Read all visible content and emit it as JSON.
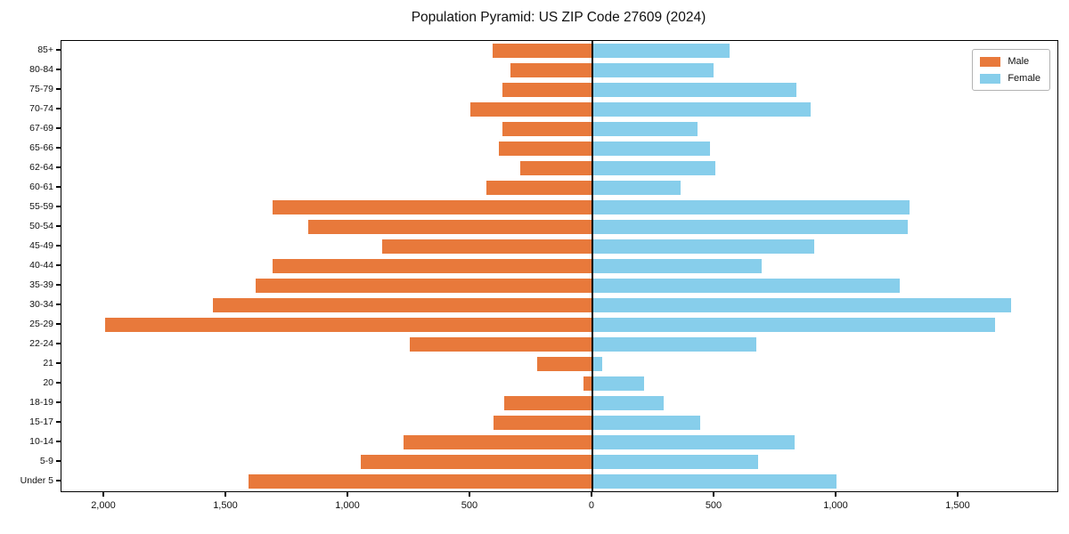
{
  "figure": {
    "title": "Population Pyramid: US ZIP Code 27609 (2024)"
  },
  "legend": {
    "male_label": "Male",
    "female_label": "Female"
  },
  "colors": {
    "male": "#e8793b",
    "female": "#87ceeb",
    "axis": "#000000",
    "legend_border": "#b3b3b3"
  },
  "chart_data": {
    "type": "bar",
    "subtype": "population-pyramid",
    "title": "Population Pyramid: US ZIP Code 27609 (2024)",
    "xlabel": "",
    "ylabel": "",
    "grid": false,
    "zero_line": true,
    "legend_position": "upper-right",
    "categories": [
      "85+",
      "80-84",
      "75-79",
      "70-74",
      "67-69",
      "65-66",
      "62-64",
      "60-61",
      "55-59",
      "50-54",
      "45-49",
      "40-44",
      "35-39",
      "30-34",
      "25-29",
      "22-24",
      "21",
      "20",
      "18-19",
      "15-17",
      "10-14",
      "5-9",
      "Under 5"
    ],
    "series": [
      {
        "name": "Male",
        "side": "left",
        "color": "#e8793b",
        "values": [
          410,
          335,
          370,
          500,
          370,
          385,
          295,
          435,
          1310,
          1165,
          860,
          1310,
          1380,
          1555,
          1995,
          750,
          225,
          35,
          360,
          405,
          775,
          950,
          1410
        ]
      },
      {
        "name": "Female",
        "side": "right",
        "color": "#87ceeb",
        "values": [
          560,
          495,
          835,
          895,
          430,
          480,
          505,
          360,
          1300,
          1290,
          910,
          695,
          1260,
          1715,
          1650,
          670,
          40,
          210,
          290,
          440,
          830,
          680,
          1000
        ]
      }
    ],
    "x_ticks": [
      -2000,
      -1500,
      -1000,
      -500,
      0,
      500,
      1000,
      1500
    ],
    "x_tick_labels": [
      "2,000",
      "1,500",
      "1,000",
      "500",
      "0",
      "500",
      "1,000",
      "1,500"
    ],
    "xlim": [
      -2175,
      1905
    ]
  }
}
